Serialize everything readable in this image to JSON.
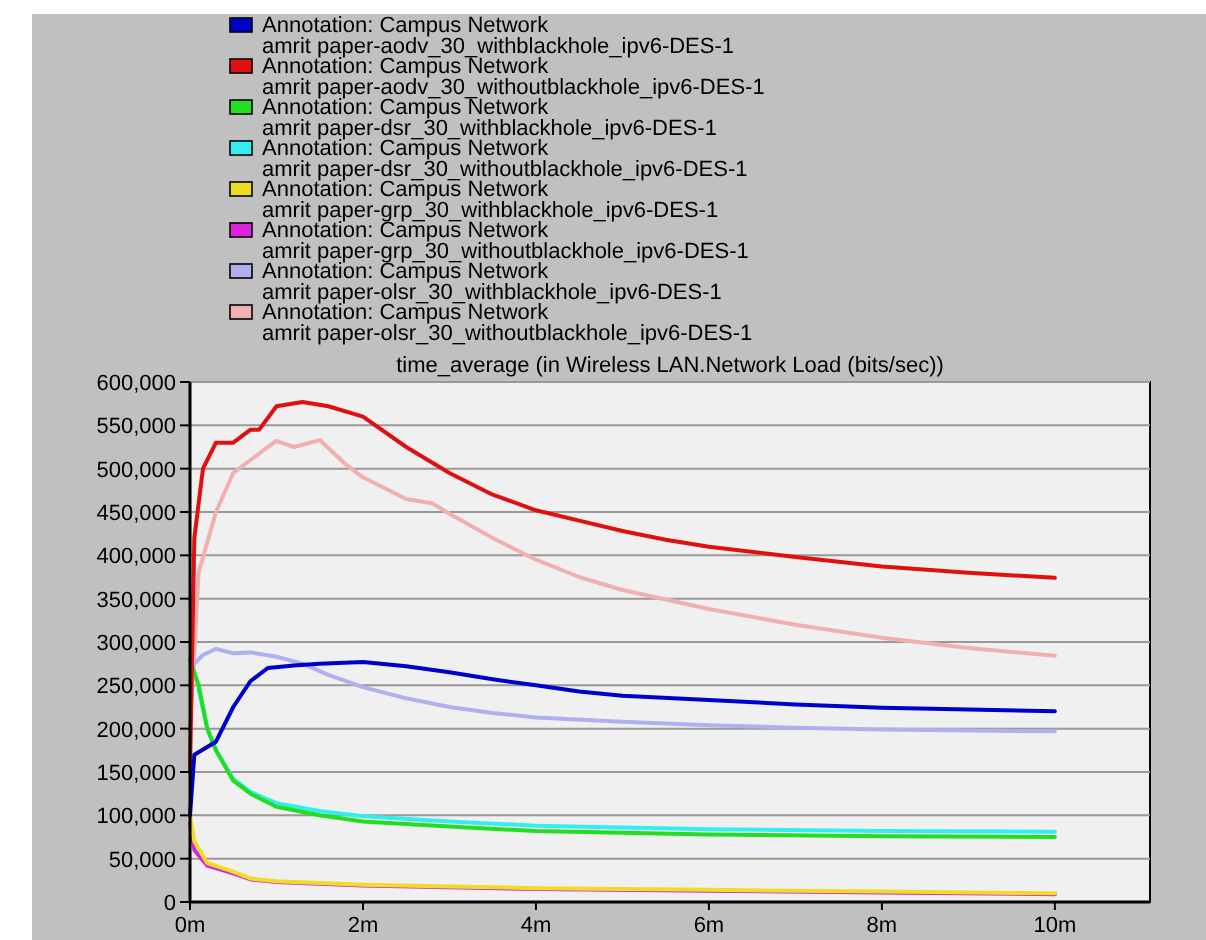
{
  "chart_data": {
    "type": "line",
    "title": "time_average (in Wireless LAN.Network Load (bits/sec))",
    "xlim": [
      0,
      11.1
    ],
    "xticks": [
      {
        "value": 0,
        "label": "0m"
      },
      {
        "value": 2,
        "label": "2m"
      },
      {
        "value": 4,
        "label": "4m"
      },
      {
        "value": 6,
        "label": "6m"
      },
      {
        "value": 8,
        "label": "8m"
      },
      {
        "value": 10,
        "label": "10m"
      }
    ],
    "ylim": [
      0,
      600000
    ],
    "yticks": [
      {
        "value": 0,
        "label": "0"
      },
      {
        "value": 50000,
        "label": "50,000"
      },
      {
        "value": 100000,
        "label": "100,000"
      },
      {
        "value": 150000,
        "label": "150,000"
      },
      {
        "value": 200000,
        "label": "200,000"
      },
      {
        "value": 250000,
        "label": "250,000"
      },
      {
        "value": 300000,
        "label": "300,000"
      },
      {
        "value": 350000,
        "label": "350,000"
      },
      {
        "value": 400000,
        "label": "400,000"
      },
      {
        "value": 450000,
        "label": "450,000"
      },
      {
        "value": 500000,
        "label": "500,000"
      },
      {
        "value": 550000,
        "label": "550,000"
      },
      {
        "value": 600000,
        "label": "600,000"
      }
    ],
    "grid": "y",
    "legend": "top",
    "marker": "none",
    "line_style": "solid",
    "series": [
      {
        "name": "Annotation: Campus Network\namrit paper-aodv_30_withblackhole_ipv6-DES-1",
        "color": "#0000cc",
        "x": [
          0,
          0.05,
          0.3,
          0.5,
          0.7,
          0.9,
          1.2,
          1.5,
          2,
          2.5,
          3,
          3.5,
          4,
          4.5,
          5,
          6,
          7,
          8,
          9,
          10
        ],
        "values": [
          100000,
          170000,
          185000,
          225000,
          255000,
          270000,
          273000,
          275000,
          277000,
          272000,
          265000,
          257000,
          250000,
          243000,
          238000,
          233000,
          228000,
          224000,
          222000,
          220000
        ]
      },
      {
        "name": "Annotation: Campus Network\namrit paper-aodv_30_withoutblackhole_ipv6-DES-1",
        "color": "#e01010",
        "x": [
          0,
          0.05,
          0.15,
          0.3,
          0.5,
          0.7,
          0.8,
          1,
          1.3,
          1.6,
          2,
          2.5,
          3,
          3.5,
          4,
          4.5,
          5,
          5.5,
          6,
          7,
          8,
          9,
          10
        ],
        "values": [
          150000,
          420000,
          500000,
          530000,
          530000,
          545000,
          545000,
          572000,
          577000,
          572000,
          560000,
          525000,
          495000,
          470000,
          452000,
          440000,
          428000,
          418000,
          410000,
          398000,
          387000,
          380000,
          374000
        ]
      },
      {
        "name": "Annotation: Campus Network\namrit paper-dsr_30_withblackhole_ipv6-DES-1",
        "color": "#22dd22",
        "x": [
          0,
          0.1,
          0.2,
          0.3,
          0.5,
          0.7,
          1,
          1.5,
          2,
          3,
          4,
          5,
          6,
          8,
          10
        ],
        "values": [
          280000,
          250000,
          200000,
          175000,
          140000,
          125000,
          110000,
          100000,
          93000,
          87000,
          82000,
          80000,
          78000,
          76000,
          75000
        ]
      },
      {
        "name": "Annotation: Campus Network\namrit paper-dsr_30_withoutblackhole_ipv6-DES-1",
        "color": "#33eeee",
        "x": [
          0.1,
          0.2,
          0.3,
          0.5,
          0.7,
          1,
          1.5,
          2,
          3,
          4,
          5,
          6,
          8,
          10
        ],
        "values": [
          245000,
          200000,
          175000,
          142000,
          127000,
          114000,
          105000,
          99000,
          93000,
          88000,
          86000,
          84000,
          82000,
          81000
        ]
      },
      {
        "name": "Annotation: Campus Network\namrit paper-grp_30_withblackhole_ipv6-DES-1",
        "color": "#eedd22",
        "x": [
          0,
          0.05,
          0.2,
          0.5,
          0.7,
          1,
          1.5,
          2,
          3,
          4,
          6,
          8,
          10
        ],
        "values": [
          100000,
          70000,
          45000,
          35000,
          27000,
          24000,
          22000,
          20000,
          18000,
          16000,
          14000,
          12000,
          10000
        ]
      },
      {
        "name": "Annotation: Campus Network\namrit paper-grp_30_withoutblackhole_ipv6-DES-1",
        "color": "#dd22dd",
        "x": [
          0,
          0.05,
          0.2,
          0.5,
          0.7,
          1,
          1.5,
          2,
          3,
          4,
          6,
          8,
          10
        ],
        "values": [
          90000,
          60000,
          42000,
          33000,
          26000,
          23000,
          21000,
          19000,
          17000,
          15000,
          13000,
          11000,
          9000
        ]
      },
      {
        "name": "Annotation: Campus Network\namrit paper-olsr_30_withblackhole_ipv6-DES-1",
        "color": "#b0b0f0",
        "x": [
          0,
          0.15,
          0.3,
          0.5,
          0.7,
          1,
          1.3,
          1.6,
          2,
          2.5,
          3,
          3.5,
          4,
          5,
          6,
          7,
          8,
          9,
          10
        ],
        "values": [
          270000,
          285000,
          292000,
          287000,
          288000,
          283000,
          275000,
          262000,
          248000,
          235000,
          225000,
          218000,
          213000,
          208000,
          204000,
          201000,
          199000,
          198000,
          197000
        ]
      },
      {
        "name": "Annotation: Campus Network\namrit paper-olsr_30_withoutblackhole_ipv6-DES-1",
        "color": "#f0b0b0",
        "x": [
          0,
          0.1,
          0.3,
          0.5,
          0.7,
          0.9,
          1,
          1.2,
          1.5,
          1.8,
          2,
          2.5,
          2.8,
          3,
          3.5,
          4,
          4.5,
          5,
          6,
          7,
          8,
          9,
          10
        ],
        "values": [
          200000,
          380000,
          450000,
          495000,
          510000,
          525000,
          532000,
          525000,
          533000,
          505000,
          490000,
          465000,
          460000,
          448000,
          420000,
          395000,
          375000,
          360000,
          338000,
          320000,
          305000,
          293000,
          284000
        ]
      }
    ]
  }
}
